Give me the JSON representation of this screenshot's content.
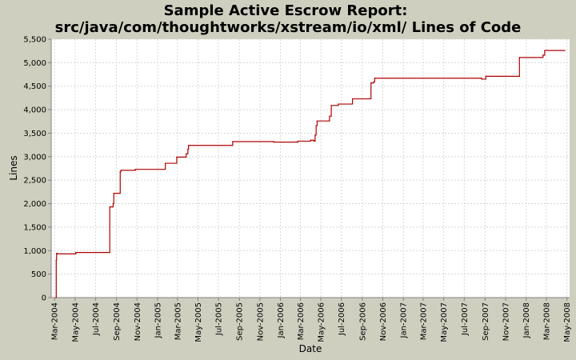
{
  "chart_data": {
    "type": "line",
    "title_line1": "Sample Active Escrow Report:",
    "title_line2": "src/java/com/thoughtworks/xstream/io/xml/ Lines of Code",
    "xlabel": "Date",
    "ylabel": "Lines",
    "ylim": [
      0,
      5500
    ],
    "yticks": [
      {
        "value": 0,
        "label": "0"
      },
      {
        "value": 500,
        "label": "500"
      },
      {
        "value": 1000,
        "label": "1,000"
      },
      {
        "value": 1500,
        "label": "1,500"
      },
      {
        "value": 2000,
        "label": "2,000"
      },
      {
        "value": 2500,
        "label": "2,500"
      },
      {
        "value": 3000,
        "label": "3,000"
      },
      {
        "value": 3500,
        "label": "3,500"
      },
      {
        "value": 4000,
        "label": "4,000"
      },
      {
        "value": 4500,
        "label": "4,500"
      },
      {
        "value": 5000,
        "label": "5,000"
      },
      {
        "value": 5500,
        "label": "5,500"
      }
    ],
    "xlim": [
      "2004-02-20",
      "2008-05-09"
    ],
    "xticks": [
      {
        "date": "2004-03-01",
        "label": "Mar-2004"
      },
      {
        "date": "2004-05-01",
        "label": "May-2004"
      },
      {
        "date": "2004-07-01",
        "label": "Jul-2004"
      },
      {
        "date": "2004-09-01",
        "label": "Sep-2004"
      },
      {
        "date": "2004-11-01",
        "label": "Nov-2004"
      },
      {
        "date": "2005-01-01",
        "label": "Jan-2005"
      },
      {
        "date": "2005-03-01",
        "label": "Mar-2005"
      },
      {
        "date": "2005-05-01",
        "label": "May-2005"
      },
      {
        "date": "2005-07-01",
        "label": "Jul-2005"
      },
      {
        "date": "2005-09-01",
        "label": "Sep-2005"
      },
      {
        "date": "2005-11-01",
        "label": "Nov-2005"
      },
      {
        "date": "2006-01-01",
        "label": "Jan-2006"
      },
      {
        "date": "2006-03-01",
        "label": "Mar-2006"
      },
      {
        "date": "2006-05-01",
        "label": "May-2006"
      },
      {
        "date": "2006-07-01",
        "label": "Jul-2006"
      },
      {
        "date": "2006-09-01",
        "label": "Sep-2006"
      },
      {
        "date": "2006-11-01",
        "label": "Nov-2006"
      },
      {
        "date": "2007-01-01",
        "label": "Jan-2007"
      },
      {
        "date": "2007-03-01",
        "label": "Mar-2007"
      },
      {
        "date": "2007-05-01",
        "label": "May-2007"
      },
      {
        "date": "2007-07-01",
        "label": "Jul-2007"
      },
      {
        "date": "2007-09-01",
        "label": "Sep-2007"
      },
      {
        "date": "2007-11-01",
        "label": "Nov-2007"
      },
      {
        "date": "2008-01-01",
        "label": "Jan-2008"
      },
      {
        "date": "2008-03-01",
        "label": "Mar-2008"
      },
      {
        "date": "2008-05-01",
        "label": "May-2008"
      }
    ],
    "grid": true,
    "series": [
      {
        "color": "#b00000",
        "step": true,
        "points": [
          [
            "2004-03-05",
            0
          ],
          [
            "2004-03-06",
            800
          ],
          [
            "2004-03-07",
            940
          ],
          [
            "2004-03-10",
            930
          ],
          [
            "2004-05-01",
            930
          ],
          [
            "2004-05-03",
            960
          ],
          [
            "2004-08-10",
            960
          ],
          [
            "2004-08-12",
            1930
          ],
          [
            "2004-08-20",
            1930
          ],
          [
            "2004-08-22",
            2000
          ],
          [
            "2004-08-24",
            2220
          ],
          [
            "2004-09-10",
            2220
          ],
          [
            "2004-09-12",
            2680
          ],
          [
            "2004-09-14",
            2710
          ],
          [
            "2004-10-25",
            2710
          ],
          [
            "2004-10-27",
            2730
          ],
          [
            "2005-01-22",
            2730
          ],
          [
            "2005-01-24",
            2860
          ],
          [
            "2005-02-25",
            2860
          ],
          [
            "2005-02-27",
            2990
          ],
          [
            "2005-03-25",
            2990
          ],
          [
            "2005-03-27",
            3060
          ],
          [
            "2005-04-01",
            3160
          ],
          [
            "2005-04-03",
            3240
          ],
          [
            "2005-08-10",
            3240
          ],
          [
            "2005-08-12",
            3320
          ],
          [
            "2005-12-10",
            3320
          ],
          [
            "2005-12-12",
            3310
          ],
          [
            "2006-02-20",
            3310
          ],
          [
            "2006-02-22",
            3330
          ],
          [
            "2006-03-30",
            3330
          ],
          [
            "2006-04-01",
            3350
          ],
          [
            "2006-04-10",
            3330
          ],
          [
            "2006-04-14",
            3460
          ],
          [
            "2006-04-17",
            3660
          ],
          [
            "2006-04-20",
            3760
          ],
          [
            "2006-05-25",
            3760
          ],
          [
            "2006-05-27",
            3860
          ],
          [
            "2006-06-01",
            4090
          ],
          [
            "2006-06-20",
            4090
          ],
          [
            "2006-06-22",
            4120
          ],
          [
            "2006-08-01",
            4120
          ],
          [
            "2006-08-03",
            4230
          ],
          [
            "2006-09-25",
            4230
          ],
          [
            "2006-09-27",
            4570
          ],
          [
            "2006-10-05",
            4590
          ],
          [
            "2006-10-08",
            4670
          ],
          [
            "2007-08-20",
            4670
          ],
          [
            "2007-08-22",
            4650
          ],
          [
            "2007-09-01",
            4650
          ],
          [
            "2007-09-03",
            4710
          ],
          [
            "2007-12-10",
            4710
          ],
          [
            "2007-12-12",
            5110
          ],
          [
            "2008-02-15",
            5110
          ],
          [
            "2008-02-20",
            5160
          ],
          [
            "2008-02-25",
            5260
          ],
          [
            "2008-04-25",
            5260
          ]
        ]
      }
    ]
  }
}
